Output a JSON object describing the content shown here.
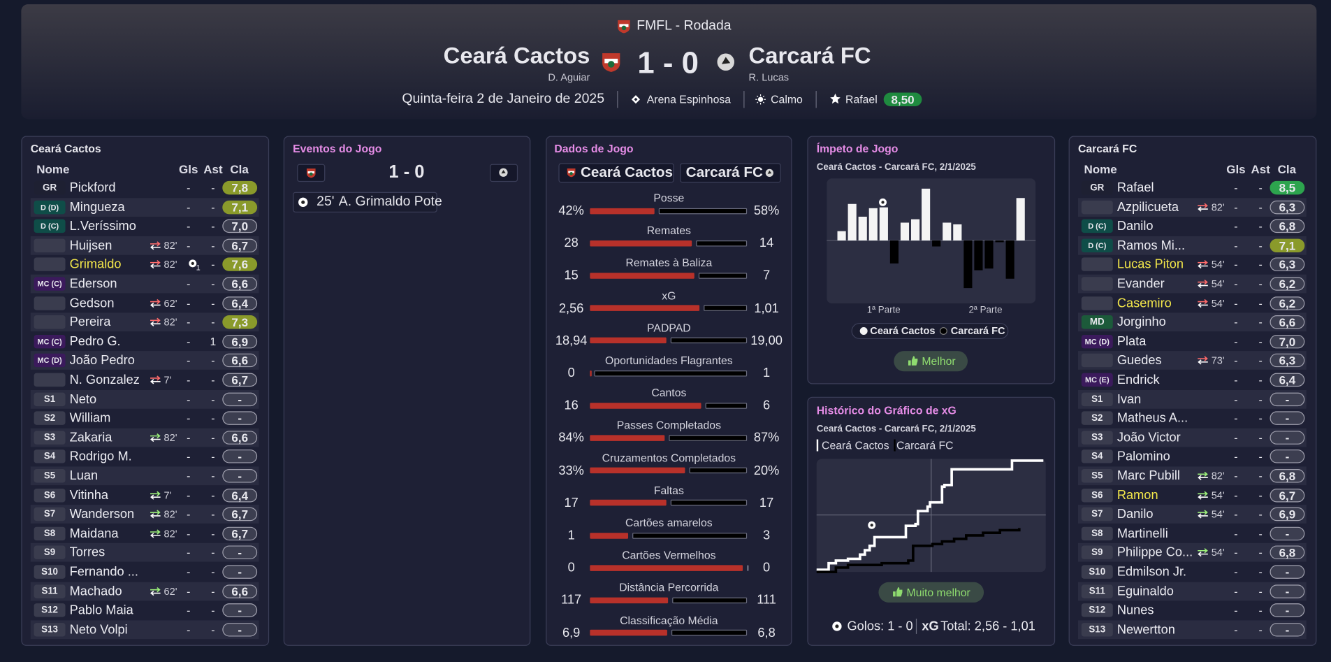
{
  "header": {
    "competition": "FMFL - Rodada",
    "home": "Ceará Cactos",
    "home_manager": "D. Aguiar",
    "score": "1 - 0",
    "away": "Carcará FC",
    "away_manager": "R. Lucas",
    "date": "Quinta-feira 2 de Janeiro de 2025",
    "stadium": "Arena Espinhosa",
    "weather": "Calmo",
    "potm": "Rafael",
    "potm_rating": "8,50"
  },
  "home_lineup": {
    "title": "Ceará Cactos",
    "columns": [
      "Nome",
      "Gls",
      "Ast",
      "Cla"
    ],
    "rows": [
      {
        "pos": "GR",
        "name": "Pickford",
        "goals": "-",
        "assists": "-",
        "rating": "7,8"
      },
      {
        "pos": "D (D)",
        "name": "Mingueza",
        "goals": "-",
        "assists": "-",
        "rating": "7,1"
      },
      {
        "pos": "D (C)",
        "name": "L.Veríssimo",
        "goals": "-",
        "assists": "-",
        "rating": "7,0"
      },
      {
        "pos": "",
        "name": "Huijsen",
        "sub": "82'",
        "goals": "-",
        "assists": "-",
        "rating": "6,7"
      },
      {
        "pos": "",
        "name": "Grimaldo",
        "highlight": true,
        "sub": "82'",
        "goals": "1",
        "assists": "-",
        "rating": "7,6"
      },
      {
        "pos": "MC (C)",
        "name": "Ederson",
        "goals": "-",
        "assists": "-",
        "rating": "6,6"
      },
      {
        "pos": "",
        "name": "Gedson",
        "sub": "62'",
        "goals": "-",
        "assists": "-",
        "rating": "6,4"
      },
      {
        "pos": "",
        "name": "Pereira",
        "sub": "82'",
        "goals": "-",
        "assists": "-",
        "rating": "7,3"
      },
      {
        "pos": "MC (C)",
        "name": "Pedro G.",
        "goals": "-",
        "assists": "1",
        "rating": "6,9"
      },
      {
        "pos": "MC (D)",
        "name": "João Pedro",
        "goals": "-",
        "assists": "-",
        "rating": "6,6"
      },
      {
        "pos": "",
        "name": "N. Gonzalez",
        "sub": "7'",
        "goals": "-",
        "assists": "-",
        "rating": "6,7"
      },
      {
        "pos": "S1",
        "name": "Neto",
        "goals": "-",
        "assists": "-",
        "rating": "-"
      },
      {
        "pos": "S2",
        "name": "William",
        "goals": "-",
        "assists": "-",
        "rating": "-"
      },
      {
        "pos": "S3",
        "name": "Zakaria",
        "sub": "82'",
        "goals": "-",
        "assists": "-",
        "rating": "6,6"
      },
      {
        "pos": "S4",
        "name": "Rodrigo M.",
        "goals": "-",
        "assists": "-",
        "rating": "-"
      },
      {
        "pos": "S5",
        "name": "Luan",
        "goals": "-",
        "assists": "-",
        "rating": "-"
      },
      {
        "pos": "S6",
        "name": "Vitinha",
        "sub": "7'",
        "goals": "-",
        "assists": "-",
        "rating": "6,4"
      },
      {
        "pos": "S7",
        "name": "Wanderson",
        "sub": "82'",
        "goals": "-",
        "assists": "-",
        "rating": "6,7"
      },
      {
        "pos": "S8",
        "name": "Maidana",
        "sub": "82'",
        "goals": "-",
        "assists": "-",
        "rating": "6,7"
      },
      {
        "pos": "S9",
        "name": "Torres",
        "goals": "-",
        "assists": "-",
        "rating": "-"
      },
      {
        "pos": "S10",
        "name": "Fernando ...",
        "goals": "-",
        "assists": "-",
        "rating": "-"
      },
      {
        "pos": "S11",
        "name": "Machado",
        "sub": "62'",
        "goals": "-",
        "assists": "-",
        "rating": "6,6"
      },
      {
        "pos": "S12",
        "name": "Pablo Maia",
        "goals": "-",
        "assists": "-",
        "rating": "-"
      },
      {
        "pos": "S13",
        "name": "Neto Volpi",
        "goals": "-",
        "assists": "-",
        "rating": "-"
      }
    ]
  },
  "away_lineup": {
    "title": "Carcará FC",
    "columns": [
      "Nome",
      "Gls",
      "Ast",
      "Cla"
    ],
    "rows": [
      {
        "pos": "GR",
        "name": "Rafael",
        "goals": "-",
        "assists": "-",
        "rating": "8,5"
      },
      {
        "pos": "",
        "name": "Azpilicueta",
        "sub": "82'",
        "goals": "-",
        "assists": "-",
        "rating": "6,3"
      },
      {
        "pos": "D (C)",
        "name": "Danilo",
        "goals": "-",
        "assists": "-",
        "rating": "6,8"
      },
      {
        "pos": "D (C)",
        "name": "Ramos Mi...",
        "goals": "-",
        "assists": "-",
        "rating": "7,1"
      },
      {
        "pos": "",
        "name": "Lucas Piton",
        "highlight": true,
        "sub": "54'",
        "goals": "-",
        "assists": "-",
        "rating": "6,3"
      },
      {
        "pos": "",
        "name": "Evander",
        "sub": "54'",
        "goals": "-",
        "assists": "-",
        "rating": "6,2"
      },
      {
        "pos": "",
        "name": "Casemiro",
        "highlight": true,
        "sub": "54'",
        "goals": "-",
        "assists": "-",
        "rating": "6,2"
      },
      {
        "pos": "MD",
        "name": "Jorginho",
        "goals": "-",
        "assists": "-",
        "rating": "6,6"
      },
      {
        "pos": "MC (D)",
        "name": "Plata",
        "goals": "-",
        "assists": "-",
        "rating": "7,0"
      },
      {
        "pos": "",
        "name": "Guedes",
        "sub": "73'",
        "goals": "-",
        "assists": "-",
        "rating": "6,3"
      },
      {
        "pos": "MC (E)",
        "name": "Endrick",
        "goals": "-",
        "assists": "-",
        "rating": "6,4"
      },
      {
        "pos": "S1",
        "name": "Ivan",
        "goals": "-",
        "assists": "-",
        "rating": "-"
      },
      {
        "pos": "S2",
        "name": "Matheus A...",
        "goals": "-",
        "assists": "-",
        "rating": "-"
      },
      {
        "pos": "S3",
        "name": "João Victor",
        "goals": "-",
        "assists": "-",
        "rating": "-"
      },
      {
        "pos": "S4",
        "name": "Palomino",
        "goals": "-",
        "assists": "-",
        "rating": "-"
      },
      {
        "pos": "S5",
        "name": "Marc Pubill",
        "sub": "82'",
        "goals": "-",
        "assists": "-",
        "rating": "6,8"
      },
      {
        "pos": "S6",
        "name": "Ramon",
        "highlight": true,
        "sub": "54'",
        "goals": "-",
        "assists": "-",
        "rating": "6,7"
      },
      {
        "pos": "S7",
        "name": "Danilo",
        "sub": "54'",
        "goals": "-",
        "assists": "-",
        "rating": "6,9"
      },
      {
        "pos": "S8",
        "name": "Martinelli",
        "goals": "-",
        "assists": "-",
        "rating": "-"
      },
      {
        "pos": "S9",
        "name": "Philippe Co...",
        "sub": "54'",
        "goals": "-",
        "assists": "-",
        "rating": "6,8"
      },
      {
        "pos": "S10",
        "name": "Edmilson Jr.",
        "goals": "-",
        "assists": "-",
        "rating": "-"
      },
      {
        "pos": "S11",
        "name": "Eguinaldo",
        "goals": "-",
        "assists": "-",
        "rating": "-"
      },
      {
        "pos": "S12",
        "name": "Nunes",
        "goals": "-",
        "assists": "-",
        "rating": "-"
      },
      {
        "pos": "S13",
        "name": "Newertton",
        "goals": "-",
        "assists": "-",
        "rating": "-"
      }
    ]
  },
  "events_panel": {
    "title": "Eventos do Jogo",
    "score": "1 - 0",
    "events": [
      {
        "minute": "25'",
        "text": "A. Grimaldo Pote"
      }
    ]
  },
  "stats_panel": {
    "title": "Dados de Jogo",
    "teams": [
      "Ceará Cactos",
      "Carcará FC"
    ],
    "home_color": "#b8312a",
    "away_color": "#000000",
    "stats": [
      {
        "label": "Posse",
        "home": "42%",
        "away": "58%"
      },
      {
        "label": "Remates",
        "home": "28",
        "away": "14"
      },
      {
        "label": "Remates à Baliza",
        "home": "15",
        "away": "7"
      },
      {
        "label": "xG",
        "home": "2,56",
        "away": "1,01"
      },
      {
        "label": "PADPAD",
        "home": "18,94",
        "away": "19,00"
      },
      {
        "label": "Oportunidades Flagrantes",
        "home": "0",
        "away": "1"
      },
      {
        "label": "Cantos",
        "home": "16",
        "away": "6"
      },
      {
        "label": "Passes Completados",
        "home": "84%",
        "away": "87%"
      },
      {
        "label": "Cruzamentos Completados",
        "home": "33%",
        "away": "20%"
      },
      {
        "label": "Faltas",
        "home": "17",
        "away": "17"
      },
      {
        "label": "Cartões amarelos",
        "home": "1",
        "away": "3"
      },
      {
        "label": "Cartões Vermelhos",
        "home": "0",
        "away": "0"
      },
      {
        "label": "Distância Percorrida",
        "home": "117",
        "away": "111"
      },
      {
        "label": "Classificação Média",
        "home": "6,9",
        "away": "6,8"
      }
    ]
  },
  "chart_data": [
    {
      "type": "bar",
      "title": "Ímpeto de Jogo",
      "subtitle": "Ceará Cactos - Carcará FC, 2/1/2025",
      "values": [
        11,
        43,
        28,
        38,
        39,
        -27,
        21,
        25,
        61,
        -7,
        21,
        19,
        -56,
        -35,
        -33,
        -2,
        -45,
        50
      ],
      "ylim": [
        -75,
        75
      ],
      "period_labels": [
        "1ª Parte",
        "2ª Parte"
      ],
      "series_names": [
        "Ceará Cactos",
        "Carcará FC"
      ],
      "colors": [
        "#f4f4f4",
        "#000000"
      ],
      "verdict": "Melhor"
    },
    {
      "type": "line",
      "title": "Histórico do Gráfico de xG",
      "subtitle": "Ceará Cactos - Carcará FC, 2/1/2025",
      "xlim": [
        0,
        95
      ],
      "ylim": [
        0,
        2.6
      ],
      "series": [
        {
          "name": "Ceará Cactos",
          "color": "#ffffff",
          "x": [
            0,
            5,
            8,
            13,
            18,
            20,
            22,
            24,
            37,
            41,
            42,
            46,
            47,
            52,
            53,
            56,
            81,
            94
          ],
          "values": [
            0.05,
            0.2,
            0.26,
            0.3,
            0.4,
            0.5,
            0.6,
            0.8,
            1.06,
            1.1,
            1.4,
            1.5,
            1.6,
            1.96,
            2.0,
            2.36,
            2.56,
            2.56
          ]
        },
        {
          "name": "Carcará FC",
          "color": "#000000",
          "x": [
            0,
            8,
            13,
            27,
            38,
            40,
            48,
            52,
            57,
            62,
            69,
            76,
            84
          ],
          "values": [
            0,
            0.1,
            0.16,
            0.2,
            0.26,
            0.6,
            0.64,
            0.7,
            0.76,
            0.84,
            0.9,
            0.96,
            1.01
          ]
        }
      ],
      "verdict": "Muito melhor",
      "goals_label": "Golos: 1 - 0",
      "xg_label": "xG",
      "total_label": "Total: 2,56 - 1,01"
    }
  ]
}
